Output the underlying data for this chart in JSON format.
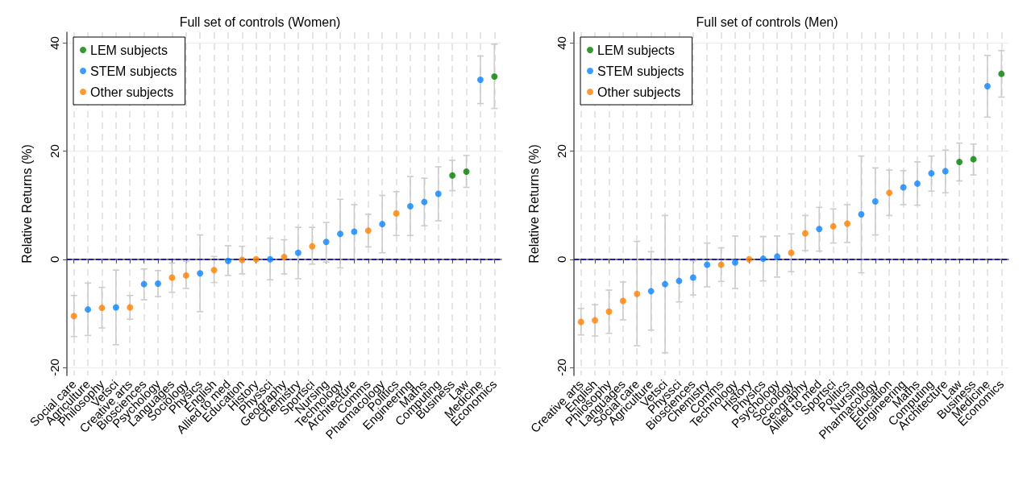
{
  "chart_data": [
    {
      "type": "scatter",
      "title": "Full set of controls (Women)",
      "ylabel": "Relative Returns (%)",
      "categories": [
        "Social care",
        "Agriculture",
        "Philosophy",
        "Vetsci",
        "Creative arts",
        "Biosciences",
        "Psychology",
        "Languages",
        "Sociology",
        "Physics",
        "English",
        "Allied to med",
        "Education",
        "History",
        "Physsci",
        "Geography",
        "Chemistry",
        "Sportsci",
        "Nursing",
        "Technology",
        "Architecture",
        "Comms",
        "Pharmacology",
        "Politics",
        "Engineering",
        "Maths",
        "Computing",
        "Business",
        "Law",
        "Medicine",
        "Economics"
      ],
      "series": [
        {
          "name": "LEM subjects",
          "color": "#008000",
          "values": [
            null,
            null,
            null,
            null,
            null,
            null,
            null,
            null,
            null,
            null,
            null,
            null,
            null,
            null,
            null,
            null,
            null,
            null,
            null,
            null,
            null,
            null,
            null,
            null,
            null,
            null,
            null,
            15.5,
            16.2,
            null,
            33.8
          ],
          "errors": [
            null,
            null,
            null,
            null,
            null,
            null,
            null,
            null,
            null,
            null,
            null,
            null,
            null,
            null,
            null,
            null,
            null,
            null,
            null,
            null,
            null,
            null,
            null,
            null,
            null,
            null,
            null,
            [
              12.7,
              18.3
            ],
            [
              13.3,
              19.2
            ],
            null,
            [
              27.9,
              39.8
            ]
          ]
        },
        {
          "name": "STEM subjects",
          "color": "#0a85ff",
          "values": [
            null,
            -9.3,
            null,
            -8.9,
            null,
            -4.6,
            -4.5,
            null,
            null,
            -2.6,
            null,
            -0.3,
            null,
            null,
            0.0,
            null,
            1.2,
            null,
            3.2,
            4.7,
            5.1,
            null,
            6.5,
            null,
            9.8,
            10.6,
            12.1,
            null,
            null,
            33.2,
            null
          ],
          "errors": [
            null,
            [
              -14.1,
              -4.4
            ],
            null,
            [
              -15.8,
              -2.0
            ],
            null,
            [
              -7.5,
              -1.8
            ],
            [
              -6.9,
              -2.1
            ],
            null,
            null,
            [
              -9.7,
              4.5
            ],
            null,
            [
              -3.0,
              2.5
            ],
            null,
            null,
            [
              -3.8,
              3.9
            ],
            null,
            [
              -3.6,
              5.9
            ],
            null,
            [
              -0.5,
              6.8
            ],
            [
              -1.6,
              11.1
            ],
            [
              0.0,
              10.1
            ],
            null,
            [
              1.2,
              11.8
            ],
            null,
            [
              4.4,
              15.3
            ],
            [
              6.2,
              15.0
            ],
            [
              7.1,
              17.1
            ],
            null,
            null,
            [
              28.8,
              37.6
            ],
            null
          ]
        },
        {
          "name": "Other subjects",
          "color": "#ff8000",
          "values": [
            -10.5,
            null,
            -9.0,
            null,
            -8.9,
            null,
            null,
            -3.4,
            -3.0,
            null,
            -2.0,
            null,
            -0.1,
            0.0,
            null,
            0.4,
            null,
            2.4,
            null,
            null,
            null,
            5.3,
            null,
            8.5,
            null,
            null,
            null,
            null,
            null,
            null,
            null
          ],
          "errors": [
            [
              -14.3,
              -6.7
            ],
            null,
            [
              -12.7,
              -5.2
            ],
            null,
            [
              -11.1,
              -6.7
            ],
            null,
            null,
            [
              -6.1,
              -0.7
            ],
            [
              -5.4,
              -0.4
            ],
            null,
            [
              -4.3,
              0.5
            ],
            null,
            [
              -2.7,
              2.4
            ],
            null,
            null,
            [
              -2.7,
              3.6
            ],
            null,
            [
              -0.9,
              5.9
            ],
            null,
            null,
            null,
            [
              2.3,
              8.3
            ],
            null,
            [
              4.4,
              12.5
            ],
            null,
            null,
            null,
            null,
            null,
            null,
            null
          ]
        }
      ],
      "ylim": [
        -21.5,
        42
      ],
      "yticks": [
        -20,
        0,
        20,
        40
      ],
      "grid": true,
      "legend": "top left",
      "marker": "circle",
      "ref_lines": [
        {
          "axis": "y",
          "value": 0,
          "color": "#0000cc",
          "line_style": "dashed"
        }
      ]
    },
    {
      "type": "scatter",
      "title": "Full set of controls (Men)",
      "ylabel": "Relative Returns (%)",
      "categories": [
        "Creative arts",
        "English",
        "Philosophy",
        "Languages",
        "Social care",
        "Agriculture",
        "Vetsci",
        "Physsci",
        "Biosciences",
        "Chemistry",
        "Comms",
        "Technology",
        "History",
        "Physics",
        "Psychology",
        "Sociology",
        "Geography",
        "Allied to med",
        "Sportsci",
        "Politics",
        "Nursing",
        "Pharmacology",
        "Education",
        "Engineering",
        "Maths",
        "Computing",
        "Architecture",
        "Law",
        "Business",
        "Medicine",
        "Economics"
      ],
      "series": [
        {
          "name": "LEM subjects",
          "color": "#008000",
          "values": [
            null,
            null,
            null,
            null,
            null,
            null,
            null,
            null,
            null,
            null,
            null,
            null,
            null,
            null,
            null,
            null,
            null,
            null,
            null,
            null,
            null,
            null,
            null,
            null,
            null,
            null,
            null,
            18.0,
            18.5,
            null,
            34.3
          ],
          "errors": [
            null,
            null,
            null,
            null,
            null,
            null,
            null,
            null,
            null,
            null,
            null,
            null,
            null,
            null,
            null,
            null,
            null,
            null,
            null,
            null,
            null,
            null,
            null,
            null,
            null,
            null,
            null,
            [
              14.5,
              21.5
            ],
            [
              15.6,
              21.3
            ],
            null,
            [
              30.0,
              38.6
            ]
          ]
        },
        {
          "name": "STEM subjects",
          "color": "#0a85ff",
          "values": [
            null,
            null,
            null,
            null,
            null,
            -5.9,
            -4.6,
            -4.0,
            -3.4,
            -1.0,
            null,
            -0.6,
            null,
            0.1,
            0.5,
            null,
            null,
            5.6,
            null,
            null,
            8.3,
            10.7,
            null,
            13.3,
            14.0,
            15.9,
            16.3,
            null,
            null,
            32.0,
            null
          ],
          "errors": [
            null,
            null,
            null,
            null,
            null,
            [
              -13.1,
              1.4
            ],
            [
              -17.3,
              8.1
            ],
            [
              -7.9,
              0.0
            ],
            [
              -6.6,
              -0.3
            ],
            [
              -5.1,
              3.0
            ],
            null,
            [
              -5.4,
              4.3
            ],
            null,
            [
              -4.0,
              4.2
            ],
            [
              -3.3,
              4.3
            ],
            null,
            null,
            [
              1.5,
              9.6
            ],
            null,
            null,
            [
              -2.5,
              19.1
            ],
            [
              4.5,
              16.9
            ],
            null,
            [
              10.1,
              16.4
            ],
            [
              10.0,
              18.0
            ],
            [
              12.6,
              19.1
            ],
            [
              12.3,
              20.2
            ],
            null,
            null,
            [
              26.3,
              37.7
            ],
            null
          ]
        },
        {
          "name": "Other subjects",
          "color": "#ff8000",
          "values": [
            -11.6,
            -11.3,
            -9.7,
            -7.7,
            -6.4,
            null,
            null,
            null,
            null,
            null,
            -1.0,
            null,
            0.0,
            null,
            null,
            1.2,
            4.8,
            null,
            6.1,
            6.6,
            null,
            null,
            12.3,
            null,
            null,
            null,
            null,
            null,
            null,
            null,
            null
          ],
          "errors": [
            [
              -14.0,
              -9.1
            ],
            [
              -14.2,
              -8.4
            ],
            [
              -13.7,
              -5.7
            ],
            [
              -11.2,
              -4.2
            ],
            [
              -16.0,
              3.3
            ],
            null,
            null,
            null,
            null,
            null,
            [
              -4.1,
              2.1
            ],
            null,
            null,
            null,
            null,
            [
              -2.3,
              4.7
            ],
            [
              1.6,
              8.1
            ],
            null,
            [
              3.0,
              9.3
            ],
            [
              3.1,
              10.1
            ],
            null,
            null,
            [
              8.1,
              16.5
            ],
            null,
            null,
            null,
            null,
            null,
            null,
            null,
            null
          ]
        }
      ],
      "ylim": [
        -21.5,
        42
      ],
      "yticks": [
        -20,
        0,
        20,
        40
      ],
      "grid": true,
      "legend": "top left",
      "marker": "circle",
      "ref_lines": [
        {
          "axis": "y",
          "value": 0,
          "color": "#0000cc",
          "line_style": "dashed"
        }
      ]
    }
  ]
}
